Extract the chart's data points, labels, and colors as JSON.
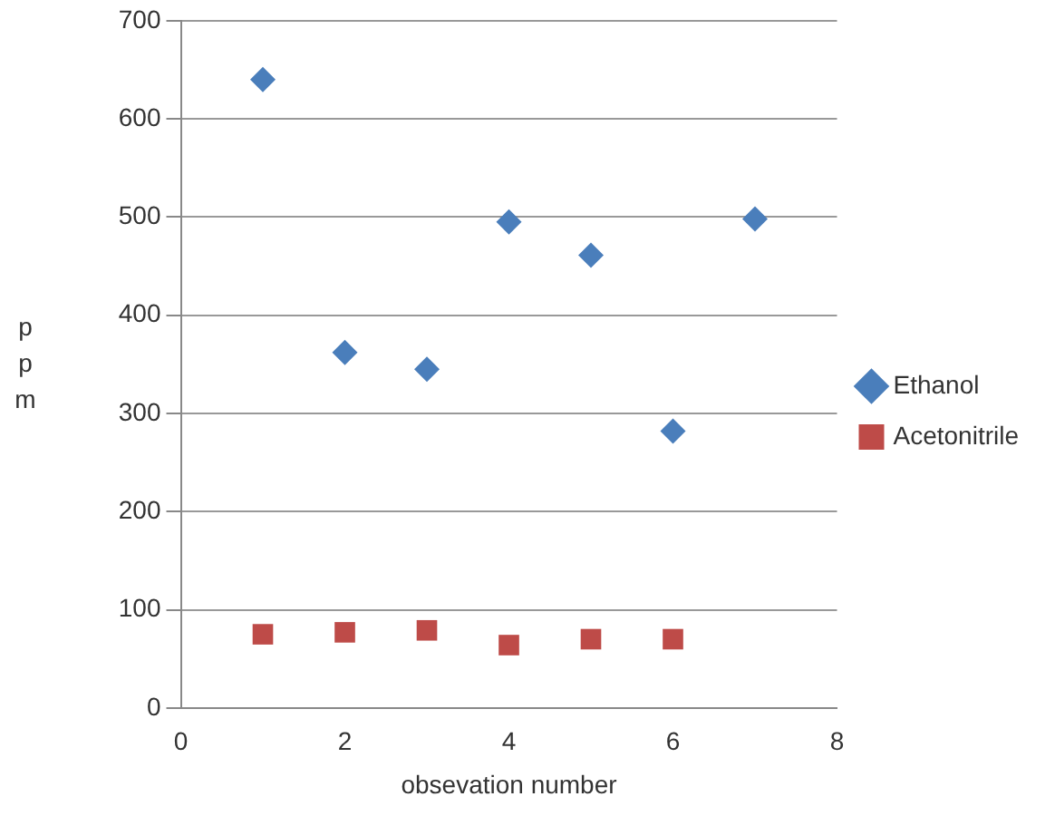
{
  "chart_data": {
    "type": "scatter",
    "xlabel": "obsevation number",
    "ylabel": "ppm",
    "xlim": [
      0,
      8
    ],
    "xticks": [
      0,
      2,
      4,
      6,
      8
    ],
    "ylim": [
      0,
      700
    ],
    "yticks": [
      0,
      100,
      200,
      300,
      400,
      500,
      600,
      700
    ],
    "grid": "y",
    "legend": "right",
    "series": [
      {
        "name": "Ethanol",
        "color": "#4a7ebb",
        "marker": "diamond",
        "x": [
          1,
          2,
          3,
          4,
          5,
          6,
          7
        ],
        "values": [
          640,
          362,
          345,
          495,
          461,
          282,
          498
        ]
      },
      {
        "name": "Acetonitrile",
        "color": "#be4b48",
        "marker": "square",
        "x": [
          1,
          2,
          3,
          4,
          5,
          6
        ],
        "values": [
          75,
          77,
          79,
          64,
          70,
          70
        ]
      }
    ]
  }
}
